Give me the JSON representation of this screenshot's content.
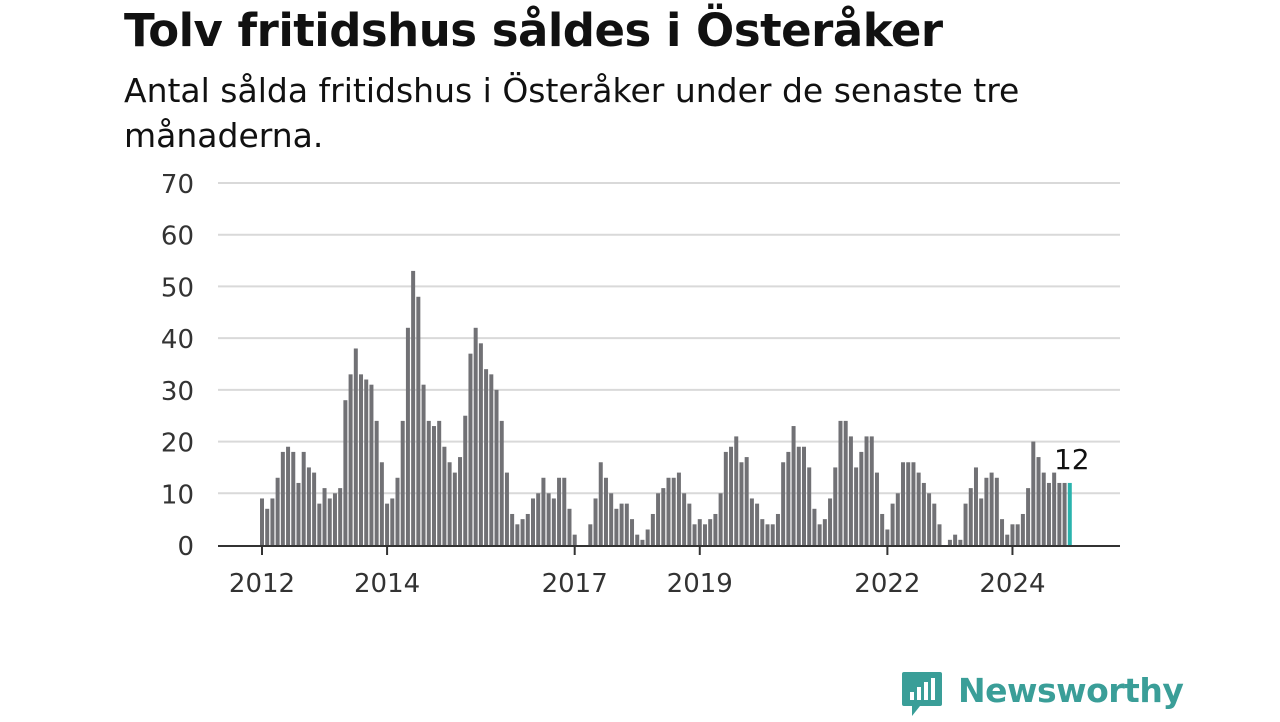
{
  "header": {
    "title": "Tolv fritidshus såldes i Österåker",
    "subtitle": "Antal sålda fritidshus i Österåker under de senaste tre månaderna."
  },
  "brand": {
    "name": "Newsworthy",
    "color": "#3a9e98"
  },
  "colors": {
    "bar": "#717175",
    "highlight": "#2ab3ad",
    "grid": "#d9d9d9",
    "axis": "#333333"
  },
  "chart_data": {
    "type": "bar",
    "title": "",
    "xlabel": "",
    "ylabel": "",
    "ylim": [
      0,
      70
    ],
    "yticks": [
      0,
      10,
      20,
      30,
      40,
      50,
      60,
      70
    ],
    "grid": true,
    "x_start": "2012-01",
    "x_end": "2025-01",
    "x_ticks": [
      {
        "label": "2012",
        "date": "2012-01"
      },
      {
        "label": "2014",
        "date": "2014-01"
      },
      {
        "label": "2017",
        "date": "2017-01"
      },
      {
        "label": "2019",
        "date": "2019-01"
      },
      {
        "label": "2022",
        "date": "2022-01"
      },
      {
        "label": "2024",
        "date": "2024-01"
      }
    ],
    "highlight": {
      "date": "2024-12",
      "value": 12,
      "label": "12"
    },
    "series": [
      {
        "values": [
          {
            "date": "2012-01",
            "value": 9
          },
          {
            "date": "2012-02",
            "value": 7
          },
          {
            "date": "2012-03",
            "value": 9
          },
          {
            "date": "2012-04",
            "value": 13
          },
          {
            "date": "2012-05",
            "value": 18
          },
          {
            "date": "2012-06",
            "value": 19
          },
          {
            "date": "2012-07",
            "value": 18
          },
          {
            "date": "2012-08",
            "value": 12
          },
          {
            "date": "2012-09",
            "value": 18
          },
          {
            "date": "2012-10",
            "value": 15
          },
          {
            "date": "2012-11",
            "value": 14
          },
          {
            "date": "2012-12",
            "value": 8
          },
          {
            "date": "2013-01",
            "value": 11
          },
          {
            "date": "2013-02",
            "value": 9
          },
          {
            "date": "2013-03",
            "value": 10
          },
          {
            "date": "2013-04",
            "value": 11
          },
          {
            "date": "2013-05",
            "value": 28
          },
          {
            "date": "2013-06",
            "value": 33
          },
          {
            "date": "2013-07",
            "value": 38
          },
          {
            "date": "2013-08",
            "value": 33
          },
          {
            "date": "2013-09",
            "value": 32
          },
          {
            "date": "2013-10",
            "value": 31
          },
          {
            "date": "2013-11",
            "value": 24
          },
          {
            "date": "2013-12",
            "value": 16
          },
          {
            "date": "2014-01",
            "value": 8
          },
          {
            "date": "2014-02",
            "value": 9
          },
          {
            "date": "2014-03",
            "value": 13
          },
          {
            "date": "2014-04",
            "value": 24
          },
          {
            "date": "2014-05",
            "value": 42
          },
          {
            "date": "2014-06",
            "value": 53
          },
          {
            "date": "2014-07",
            "value": 48
          },
          {
            "date": "2014-08",
            "value": 31
          },
          {
            "date": "2014-09",
            "value": 24
          },
          {
            "date": "2014-10",
            "value": 23
          },
          {
            "date": "2014-11",
            "value": 24
          },
          {
            "date": "2014-12",
            "value": 19
          },
          {
            "date": "2015-01",
            "value": 16
          },
          {
            "date": "2015-02",
            "value": 14
          },
          {
            "date": "2015-03",
            "value": 17
          },
          {
            "date": "2015-04",
            "value": 25
          },
          {
            "date": "2015-05",
            "value": 37
          },
          {
            "date": "2015-06",
            "value": 42
          },
          {
            "date": "2015-07",
            "value": 39
          },
          {
            "date": "2015-08",
            "value": 34
          },
          {
            "date": "2015-09",
            "value": 33
          },
          {
            "date": "2015-10",
            "value": 30
          },
          {
            "date": "2015-11",
            "value": 24
          },
          {
            "date": "2015-12",
            "value": 14
          },
          {
            "date": "2016-01",
            "value": 6
          },
          {
            "date": "2016-02",
            "value": 4
          },
          {
            "date": "2016-03",
            "value": 5
          },
          {
            "date": "2016-04",
            "value": 6
          },
          {
            "date": "2016-05",
            "value": 9
          },
          {
            "date": "2016-06",
            "value": 10
          },
          {
            "date": "2016-07",
            "value": 13
          },
          {
            "date": "2016-08",
            "value": 10
          },
          {
            "date": "2016-09",
            "value": 9
          },
          {
            "date": "2016-10",
            "value": 13
          },
          {
            "date": "2016-11",
            "value": 13
          },
          {
            "date": "2016-12",
            "value": 7
          },
          {
            "date": "2017-01",
            "value": 2
          },
          {
            "date": "2017-02",
            "value": 0
          },
          {
            "date": "2017-03",
            "value": 0
          },
          {
            "date": "2017-04",
            "value": 4
          },
          {
            "date": "2017-05",
            "value": 9
          },
          {
            "date": "2017-06",
            "value": 16
          },
          {
            "date": "2017-07",
            "value": 13
          },
          {
            "date": "2017-08",
            "value": 10
          },
          {
            "date": "2017-09",
            "value": 7
          },
          {
            "date": "2017-10",
            "value": 8
          },
          {
            "date": "2017-11",
            "value": 8
          },
          {
            "date": "2017-12",
            "value": 5
          },
          {
            "date": "2018-01",
            "value": 2
          },
          {
            "date": "2018-02",
            "value": 1
          },
          {
            "date": "2018-03",
            "value": 3
          },
          {
            "date": "2018-04",
            "value": 6
          },
          {
            "date": "2018-05",
            "value": 10
          },
          {
            "date": "2018-06",
            "value": 11
          },
          {
            "date": "2018-07",
            "value": 13
          },
          {
            "date": "2018-08",
            "value": 13
          },
          {
            "date": "2018-09",
            "value": 14
          },
          {
            "date": "2018-10",
            "value": 10
          },
          {
            "date": "2018-11",
            "value": 8
          },
          {
            "date": "2018-12",
            "value": 4
          },
          {
            "date": "2019-01",
            "value": 5
          },
          {
            "date": "2019-02",
            "value": 4
          },
          {
            "date": "2019-03",
            "value": 5
          },
          {
            "date": "2019-04",
            "value": 6
          },
          {
            "date": "2019-05",
            "value": 10
          },
          {
            "date": "2019-06",
            "value": 18
          },
          {
            "date": "2019-07",
            "value": 19
          },
          {
            "date": "2019-08",
            "value": 21
          },
          {
            "date": "2019-09",
            "value": 16
          },
          {
            "date": "2019-10",
            "value": 17
          },
          {
            "date": "2019-11",
            "value": 9
          },
          {
            "date": "2019-12",
            "value": 8
          },
          {
            "date": "2020-01",
            "value": 5
          },
          {
            "date": "2020-02",
            "value": 4
          },
          {
            "date": "2020-03",
            "value": 4
          },
          {
            "date": "2020-04",
            "value": 6
          },
          {
            "date": "2020-05",
            "value": 16
          },
          {
            "date": "2020-06",
            "value": 18
          },
          {
            "date": "2020-07",
            "value": 23
          },
          {
            "date": "2020-08",
            "value": 19
          },
          {
            "date": "2020-09",
            "value": 19
          },
          {
            "date": "2020-10",
            "value": 15
          },
          {
            "date": "2020-11",
            "value": 7
          },
          {
            "date": "2020-12",
            "value": 4
          },
          {
            "date": "2021-01",
            "value": 5
          },
          {
            "date": "2021-02",
            "value": 9
          },
          {
            "date": "2021-03",
            "value": 15
          },
          {
            "date": "2021-04",
            "value": 24
          },
          {
            "date": "2021-05",
            "value": 24
          },
          {
            "date": "2021-06",
            "value": 21
          },
          {
            "date": "2021-07",
            "value": 15
          },
          {
            "date": "2021-08",
            "value": 18
          },
          {
            "date": "2021-09",
            "value": 21
          },
          {
            "date": "2021-10",
            "value": 21
          },
          {
            "date": "2021-11",
            "value": 14
          },
          {
            "date": "2021-12",
            "value": 6
          },
          {
            "date": "2022-01",
            "value": 3
          },
          {
            "date": "2022-02",
            "value": 8
          },
          {
            "date": "2022-03",
            "value": 10
          },
          {
            "date": "2022-04",
            "value": 16
          },
          {
            "date": "2022-05",
            "value": 16
          },
          {
            "date": "2022-06",
            "value": 16
          },
          {
            "date": "2022-07",
            "value": 14
          },
          {
            "date": "2022-08",
            "value": 12
          },
          {
            "date": "2022-09",
            "value": 10
          },
          {
            "date": "2022-10",
            "value": 8
          },
          {
            "date": "2022-11",
            "value": 4
          },
          {
            "date": "2022-12",
            "value": 0
          },
          {
            "date": "2023-01",
            "value": 1
          },
          {
            "date": "2023-02",
            "value": 2
          },
          {
            "date": "2023-03",
            "value": 1
          },
          {
            "date": "2023-04",
            "value": 8
          },
          {
            "date": "2023-05",
            "value": 11
          },
          {
            "date": "2023-06",
            "value": 15
          },
          {
            "date": "2023-07",
            "value": 9
          },
          {
            "date": "2023-08",
            "value": 13
          },
          {
            "date": "2023-09",
            "value": 14
          },
          {
            "date": "2023-10",
            "value": 13
          },
          {
            "date": "2023-11",
            "value": 5
          },
          {
            "date": "2023-12",
            "value": 2
          },
          {
            "date": "2024-01",
            "value": 4
          },
          {
            "date": "2024-02",
            "value": 4
          },
          {
            "date": "2024-03",
            "value": 6
          },
          {
            "date": "2024-04",
            "value": 11
          },
          {
            "date": "2024-05",
            "value": 20
          },
          {
            "date": "2024-06",
            "value": 17
          },
          {
            "date": "2024-07",
            "value": 14
          },
          {
            "date": "2024-08",
            "value": 12
          },
          {
            "date": "2024-09",
            "value": 14
          },
          {
            "date": "2024-10",
            "value": 12
          },
          {
            "date": "2024-11",
            "value": 12
          },
          {
            "date": "2024-12",
            "value": 12
          }
        ]
      }
    ]
  }
}
